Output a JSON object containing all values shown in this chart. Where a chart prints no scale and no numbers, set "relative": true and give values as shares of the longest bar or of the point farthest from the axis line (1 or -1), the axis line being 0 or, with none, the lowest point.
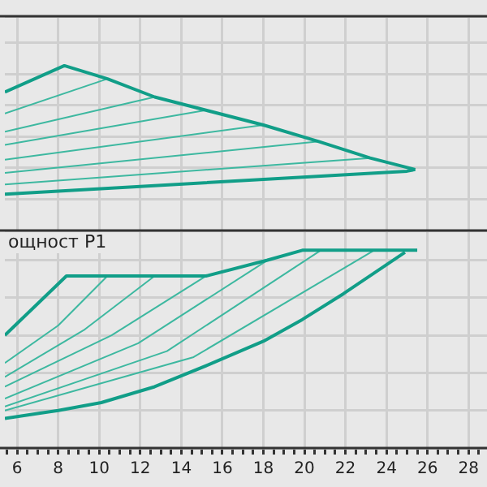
{
  "chart_data": [
    {
      "type": "line",
      "relative": true,
      "grid": true,
      "tick_labels": false,
      "marker": "none",
      "xlim": [
        5.4,
        28.9
      ],
      "xticks": [
        6,
        8,
        10,
        12,
        14,
        16,
        18,
        20,
        22,
        24,
        26,
        28
      ],
      "series": [
        {
          "color": "#119e88",
          "x": [
            5.4,
            8.3,
            10.4,
            12.7,
            15.2,
            18.0,
            20.7,
            23.2,
            25.4
          ],
          "values": [
            0.84,
            1.0,
            0.92,
            0.81,
            0.73,
            0.64,
            0.54,
            0.44,
            0.37
          ]
        },
        {
          "color": "#119e88",
          "x": [
            5.4,
            25.0,
            25.4
          ],
          "values": [
            0.22,
            0.36,
            0.37
          ]
        },
        {
          "color": "#3db8a0",
          "x": [
            5.4,
            10.4
          ],
          "values": [
            0.71,
            0.92
          ]
        },
        {
          "color": "#3db8a0",
          "x": [
            5.4,
            12.7
          ],
          "values": [
            0.6,
            0.81
          ]
        },
        {
          "color": "#3db8a0",
          "x": [
            5.4,
            15.2
          ],
          "values": [
            0.52,
            0.73
          ]
        },
        {
          "color": "#3db8a0",
          "x": [
            5.4,
            18.0
          ],
          "values": [
            0.43,
            0.64
          ]
        },
        {
          "color": "#3db8a0",
          "x": [
            5.4,
            20.7
          ],
          "values": [
            0.35,
            0.54
          ]
        },
        {
          "color": "#3db8a0",
          "x": [
            5.4,
            23.2
          ],
          "values": [
            0.28,
            0.44
          ]
        }
      ]
    },
    {
      "type": "line",
      "relative": true,
      "grid": true,
      "title": "ощност P1",
      "marker": "none",
      "xlim": [
        5.4,
        28.9
      ],
      "xticks": [
        {
          "value": 5.5,
          "label": null
        },
        6,
        {
          "value": 6.5,
          "label": null
        },
        {
          "value": 7,
          "label": null
        },
        {
          "value": 7.5,
          "label": null
        },
        8,
        {
          "value": 8.5,
          "label": null
        },
        {
          "value": 9,
          "label": null
        },
        {
          "value": 9.5,
          "label": null
        },
        10,
        {
          "value": 10.5,
          "label": null
        },
        {
          "value": 11,
          "label": null
        },
        {
          "value": 11.5,
          "label": null
        },
        12,
        {
          "value": 12.5,
          "label": null
        },
        {
          "value": 13,
          "label": null
        },
        {
          "value": 13.5,
          "label": null
        },
        14,
        {
          "value": 14.5,
          "label": null
        },
        {
          "value": 15,
          "label": null
        },
        {
          "value": 15.5,
          "label": null
        },
        16,
        {
          "value": 16.5,
          "label": null
        },
        {
          "value": 17,
          "label": null
        },
        {
          "value": 17.5,
          "label": null
        },
        18,
        {
          "value": 18.5,
          "label": null
        },
        {
          "value": 19,
          "label": null
        },
        {
          "value": 19.5,
          "label": null
        },
        20,
        {
          "value": 20.5,
          "label": null
        },
        {
          "value": 21,
          "label": null
        },
        {
          "value": 21.5,
          "label": null
        },
        22,
        {
          "value": 22.5,
          "label": null
        },
        {
          "value": 23,
          "label": null
        },
        {
          "value": 23.5,
          "label": null
        },
        24,
        {
          "value": 24.5,
          "label": null
        },
        {
          "value": 25,
          "label": null
        },
        {
          "value": 25.5,
          "label": null
        },
        26,
        {
          "value": 26.5,
          "label": null
        },
        {
          "value": 27,
          "label": null
        },
        {
          "value": 27.5,
          "label": null
        },
        28,
        {
          "value": 28.5,
          "label": null
        }
      ],
      "series": [
        {
          "color": "#119e88",
          "x": [
            5.4,
            8.4,
            15.2,
            18.2,
            19.9,
            25.5
          ],
          "values": [
            0.57,
            0.87,
            0.87,
            0.95,
            1.0,
            1.0
          ]
        },
        {
          "color": "#119e88",
          "x": [
            5.4,
            8.0,
            10.1,
            12.7,
            15.3,
            18.0,
            19.9,
            21.9,
            24.9
          ],
          "values": [
            0.15,
            0.19,
            0.23,
            0.31,
            0.42,
            0.54,
            0.65,
            0.78,
            0.99
          ]
        },
        {
          "color": "#3db8a0",
          "x": [
            5.4,
            8.0,
            10.4
          ],
          "values": [
            0.43,
            0.62,
            0.87
          ]
        },
        {
          "color": "#3db8a0",
          "x": [
            5.4,
            9.3,
            12.7
          ],
          "values": [
            0.36,
            0.6,
            0.87
          ]
        },
        {
          "color": "#3db8a0",
          "x": [
            5.4,
            10.6,
            15.2
          ],
          "values": [
            0.31,
            0.57,
            0.87
          ]
        },
        {
          "color": "#3db8a0",
          "x": [
            5.4,
            11.9,
            18.2
          ],
          "values": [
            0.25,
            0.53,
            0.95
          ]
        },
        {
          "color": "#3db8a0",
          "x": [
            5.4,
            13.3,
            20.8
          ],
          "values": [
            0.21,
            0.49,
            1.0
          ]
        },
        {
          "color": "#3db8a0",
          "x": [
            5.4,
            14.6,
            23.4
          ],
          "values": [
            0.19,
            0.46,
            1.0
          ]
        }
      ]
    }
  ]
}
